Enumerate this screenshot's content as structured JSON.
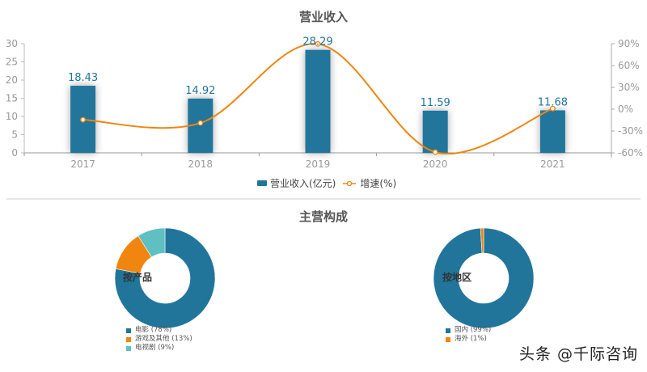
{
  "top_chart": {
    "title": "营业收入",
    "legend": [
      {
        "label": "营业收入(亿元)",
        "type": "bar",
        "color": "#21759b"
      },
      {
        "label": "增速(%)",
        "type": "line",
        "color": "#f0850f"
      }
    ]
  },
  "bottom_section": {
    "title": "主营构成",
    "product_pie": {
      "center_label": "按产品",
      "legend": [
        {
          "label": "电影 (78%)"
        },
        {
          "label": "游戏及其他 (13%)"
        },
        {
          "label": "电视剧 (9%)"
        }
      ]
    },
    "region_pie": {
      "center_label": "按地区",
      "legend": [
        {
          "label": "国内 (99%)"
        },
        {
          "label": "海外 (1%)"
        }
      ]
    }
  },
  "watermark": "头条 @千际咨询",
  "colors": {
    "bar": "#21759b",
    "line": "#f0850f",
    "teal": "#5fbfc1",
    "axis": "#aaaaaa",
    "label": "#21759b"
  },
  "chart_data": [
    {
      "type": "bar",
      "title": "营业收入",
      "categories": [
        "2017",
        "2018",
        "2019",
        "2020",
        "2021"
      ],
      "series": [
        {
          "name": "营业收入(亿元)",
          "type": "bar",
          "axis": "left",
          "values": [
            18.43,
            14.92,
            28.29,
            11.59,
            11.68
          ]
        },
        {
          "name": "增速(%)",
          "type": "line",
          "axis": "right",
          "smooth": true,
          "values": [
            -14.5,
            -19.0,
            89.6,
            -59.0,
            0.8
          ]
        }
      ],
      "ylim": [
        0,
        30
      ],
      "yticks": [
        0,
        5,
        10,
        15,
        20,
        25,
        30
      ],
      "y2lim": [
        -60,
        90
      ],
      "y2ticks": [
        "-60%",
        "-30%",
        "0%",
        "30%",
        "60%",
        "90%"
      ],
      "xlabel": "",
      "ylabel": "",
      "grid": false,
      "legend_position": "bottom"
    },
    {
      "type": "pie",
      "title": "主营构成",
      "center_label": "按产品",
      "donut": true,
      "labels": [
        "电影",
        "游戏及其他",
        "电视剧"
      ],
      "values": [
        78,
        13,
        9
      ],
      "colors": [
        "#21759b",
        "#f0850f",
        "#5fbfc1"
      ],
      "legend_position": "bottom"
    },
    {
      "type": "pie",
      "center_label": "按地区",
      "donut": true,
      "labels": [
        "国内",
        "海外"
      ],
      "values": [
        99,
        1
      ],
      "colors": [
        "#21759b",
        "#f0850f"
      ],
      "legend_position": "bottom"
    }
  ]
}
